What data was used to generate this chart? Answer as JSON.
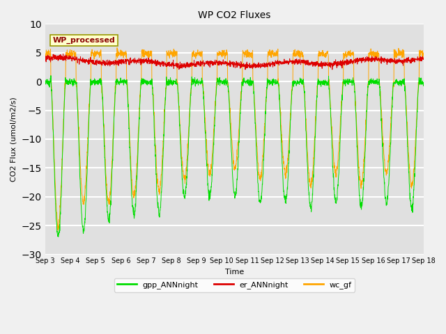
{
  "title": "WP CO2 Fluxes",
  "ylabel": "CO2 Flux (umol/m2/s)",
  "xlabel": "Time",
  "ylim": [
    -30,
    10
  ],
  "yticks": [
    -30,
    -25,
    -20,
    -15,
    -10,
    -5,
    0,
    5,
    10
  ],
  "colors": {
    "gpp": "#00dd00",
    "er": "#dd0000",
    "wc": "#ffa500"
  },
  "legend_labels": [
    "gpp_ANNnight",
    "er_ANNnight",
    "wc_gf"
  ],
  "annotation_text": "WP_processed",
  "annotation_color": "#8b0000",
  "annotation_bg": "#ffffcc",
  "bg_color": "#e0e0e0",
  "fig_bg": "#f0f0f0",
  "n_days": 15,
  "start_day": 3,
  "points_per_hour": 6
}
